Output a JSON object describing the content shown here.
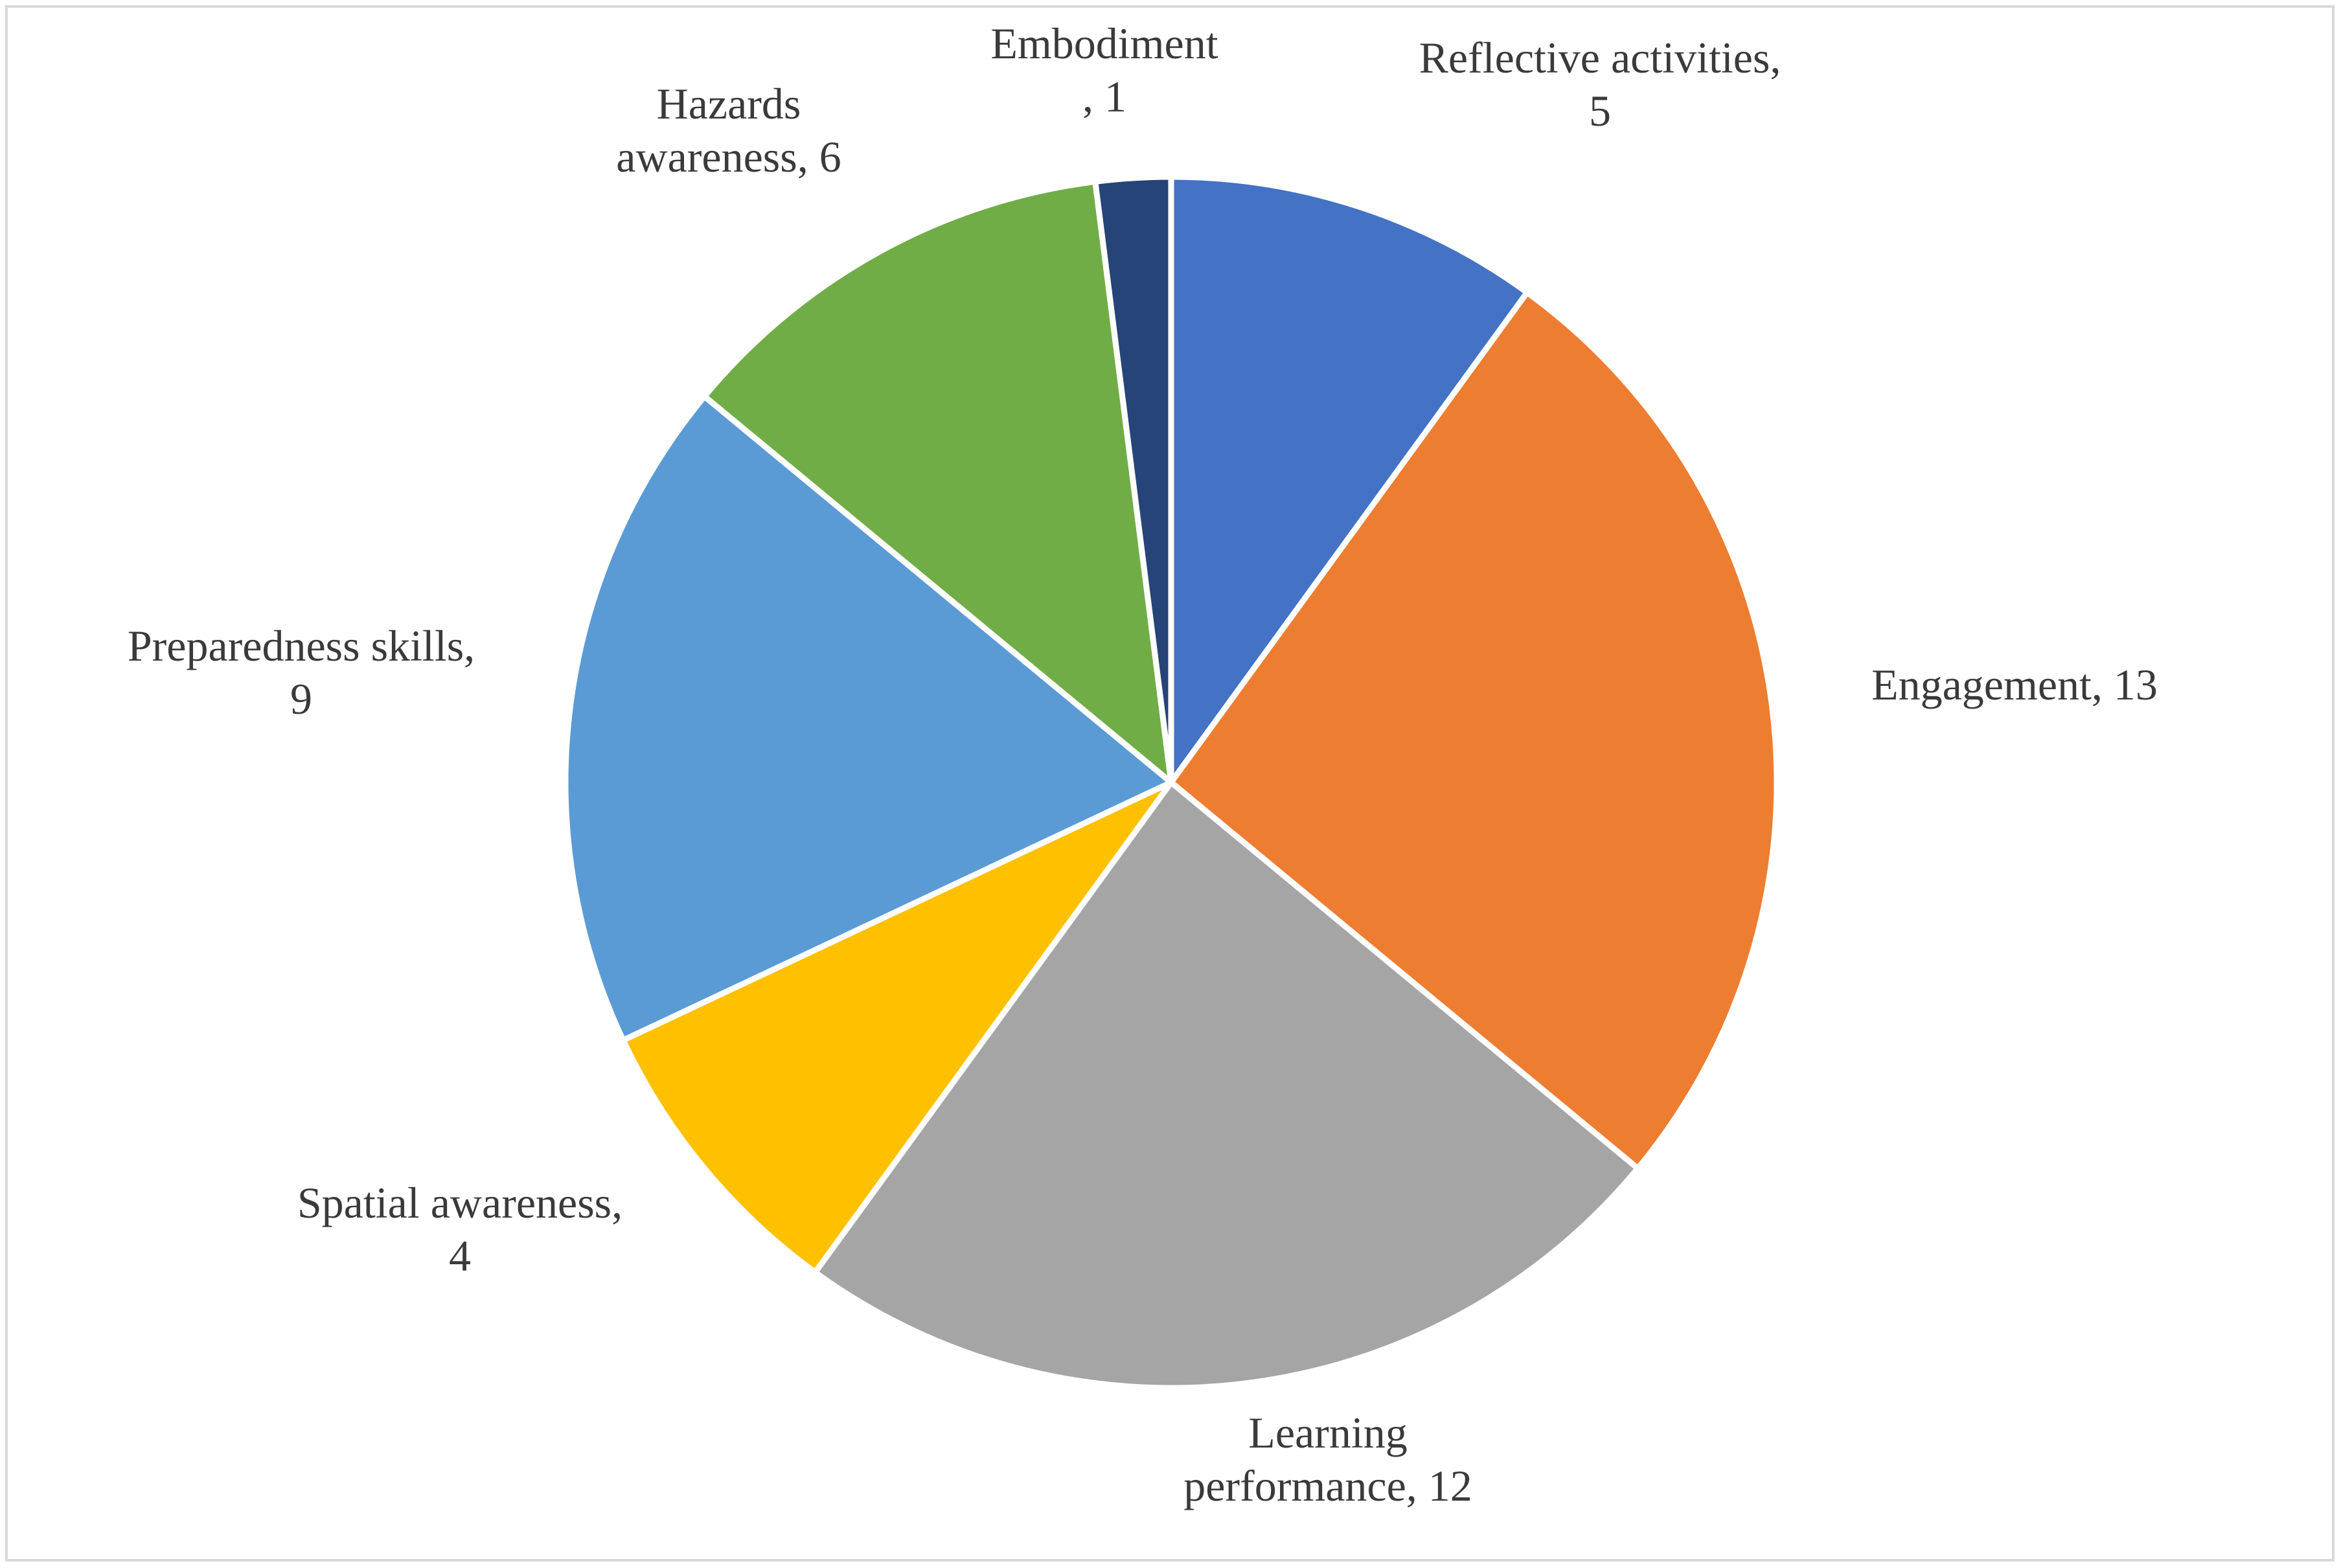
{
  "chart_data": {
    "type": "pie",
    "start_angle_deg": 0,
    "direction": "clockwise",
    "slices": [
      {
        "label": "Reflective activities",
        "value": 5,
        "color": "#4472C4",
        "label_lines": [
          "Reflective activities,",
          "5"
        ]
      },
      {
        "label": "Engagement",
        "value": 13,
        "color": "#ED7D31",
        "label_lines": [
          "Engagement, 13"
        ]
      },
      {
        "label": "Learning performance",
        "value": 12,
        "color": "#A5A5A5",
        "label_lines": [
          "Learning",
          "performance, 12"
        ]
      },
      {
        "label": "Spatial awareness",
        "value": 4,
        "color": "#FFC000",
        "label_lines": [
          "Spatial awareness,",
          "4"
        ]
      },
      {
        "label": "Preparedness skills",
        "value": 9,
        "color": "#5B9BD5",
        "label_lines": [
          "Preparedness skills,",
          "9"
        ]
      },
      {
        "label": "Hazards awareness",
        "value": 6,
        "color": "#70AD47",
        "label_lines": [
          "Hazards",
          "awareness, 6"
        ]
      },
      {
        "label": "Embodiment",
        "value": 1,
        "color": "#264478",
        "label_lines": [
          "Embodiment",
          ", 1"
        ]
      }
    ],
    "legend": "none",
    "grid": false
  }
}
